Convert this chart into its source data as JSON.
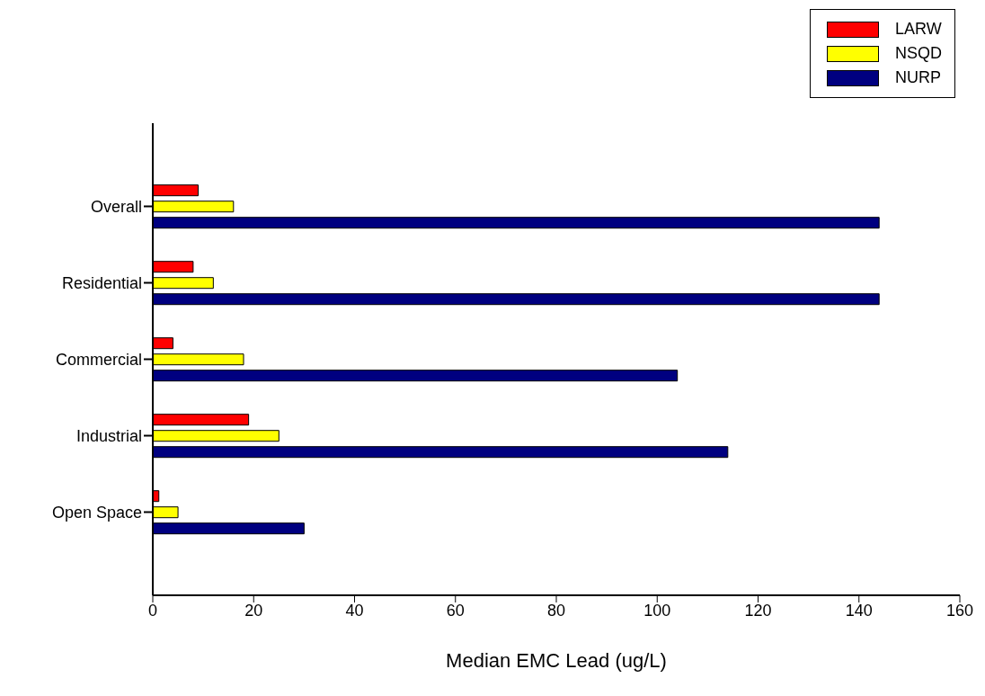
{
  "chart_data": {
    "type": "bar",
    "orientation": "horizontal",
    "xlabel": "Median EMC Lead (ug/L)",
    "categories": [
      "Overall",
      "Residential",
      "Commercial",
      "Industrial",
      "Open Space"
    ],
    "series": [
      {
        "name": "LARW",
        "color": "#ff0000",
        "values": [
          9,
          8,
          4,
          19,
          1.2
        ]
      },
      {
        "name": "NSQD",
        "color": "#ffff00",
        "values": [
          16,
          12,
          18,
          25,
          5
        ]
      },
      {
        "name": "NURP",
        "color": "#000080",
        "values": [
          144,
          144,
          104,
          114,
          30
        ]
      }
    ],
    "xlim": [
      0,
      160
    ],
    "xticks": [
      0,
      20,
      40,
      60,
      80,
      100,
      120,
      140,
      160
    ],
    "grid": false,
    "legend": "top right"
  }
}
